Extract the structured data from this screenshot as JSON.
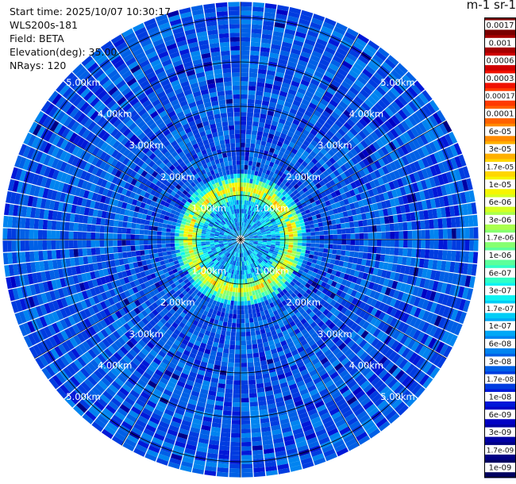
{
  "header": {
    "start_time": "Start time: 2025/10/07 10:30:17",
    "instrument": "WLS200s-181",
    "field": "Field: BETA",
    "elevation": "Elevation(deg): 35.00",
    "nrays": "NRays: 120"
  },
  "colorbar": {
    "title": "m-1 sr-1",
    "labels": [
      "0.0017",
      "0.001",
      "0.0006",
      "0.0003",
      "0.00017",
      "0.0001",
      "6e-05",
      "3e-05",
      "1.7e-05",
      "1e-05",
      "6e-06",
      "3e-06",
      "1.7e-06",
      "1e-06",
      "6e-07",
      "3e-07",
      "1.7e-07",
      "1e-07",
      "6e-08",
      "3e-08",
      "1.7e-08",
      "1e-08",
      "6e-09",
      "3e-09",
      "1.7e-09",
      "1e-09"
    ],
    "colors": [
      "#7a0000",
      "#a50000",
      "#d00000",
      "#f01000",
      "#ff3a00",
      "#ff6200",
      "#ff8a00",
      "#ffb000",
      "#ffd600",
      "#f6f600",
      "#d6ff20",
      "#aaff4d",
      "#86ff70",
      "#5cff9a",
      "#30ffc6",
      "#0ef2f2",
      "#00cdf6",
      "#00a8f6",
      "#0084f0",
      "#0060e6",
      "#003ce0",
      "#0018d8",
      "#0000c4",
      "#0000a4",
      "#000084",
      "#000060"
    ]
  },
  "ring_labels": [
    "1.00km",
    "2.00km",
    "3.00km",
    "4.00km",
    "5.00km"
  ],
  "chart_data": {
    "type": "polar heatmap (PPI)",
    "field": "BETA",
    "units": "m-1 sr-1",
    "elevation_deg": 35.0,
    "n_rays": 120,
    "range_rings_km": [
      1,
      2,
      3,
      4,
      5
    ],
    "max_range_km": 5.35,
    "color_scale": "log",
    "vmin": 1e-09,
    "vmax": 0.0017,
    "dominant_background_value": 3e-08,
    "bright_ring": {
      "radius_km": 1.1,
      "peak_value": 1e-05
    }
  },
  "colors": {
    "grid": "#000000",
    "ray_gap": "#ffffff",
    "label": "#ffffff"
  }
}
